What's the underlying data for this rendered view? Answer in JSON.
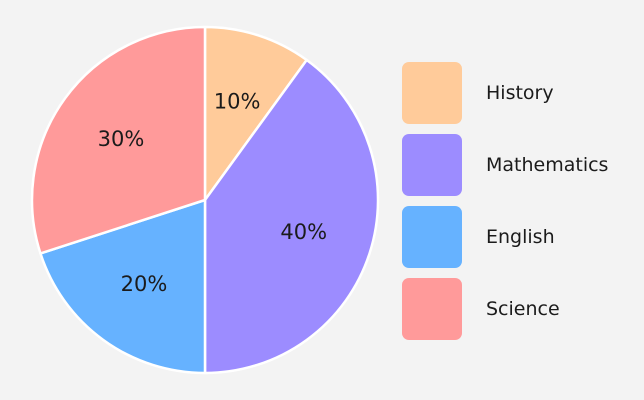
{
  "chart_data": {
    "type": "pie",
    "title": "",
    "categories": [
      "History",
      "Mathematics",
      "English",
      "Science"
    ],
    "values": [
      10,
      40,
      20,
      30
    ],
    "value_labels": [
      "10%",
      "40%",
      "20%",
      "30%"
    ],
    "colors": [
      "#ffcb9a",
      "#9c8cff",
      "#66b2ff",
      "#ff9a9a"
    ],
    "start_angle": "12 o'clock",
    "direction": "clockwise",
    "legend_position": "right"
  },
  "legend": {
    "items": [
      {
        "label": "History",
        "color": "#ffcb9a"
      },
      {
        "label": "Mathematics",
        "color": "#9c8cff"
      },
      {
        "label": "English",
        "color": "#66b2ff"
      },
      {
        "label": "Science",
        "color": "#ff9a9a"
      }
    ]
  }
}
